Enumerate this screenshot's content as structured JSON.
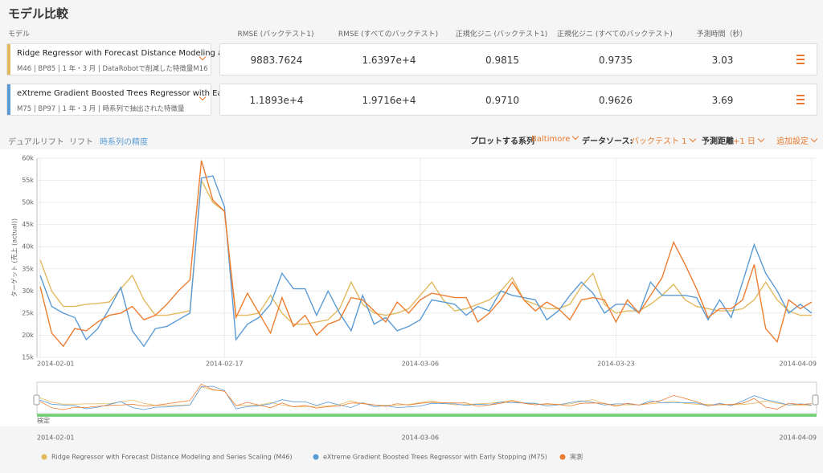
{
  "header": {
    "title": "モデル比較"
  },
  "table": {
    "columns": [
      "モデル",
      "RMSE (バックテスト1)",
      "RMSE (すべてのバックテスト)",
      "正規化ジニ (バックテスト1)",
      "正規化ジニ (すべてのバックテスト)",
      "予測時間（秒）"
    ],
    "rows": [
      {
        "name": "Ridge Regressor with Forecast Distance Modeling a...",
        "detail": "M46 | BP85 | 1 年・3 月 | DataRobotで削減した特徴量M16",
        "color": "#e3b95f",
        "cells": [
          "9883.7624",
          "1.6397e+4",
          "0.9815",
          "0.9735",
          "3.03"
        ]
      },
      {
        "name": "eXtreme Gradient Boosted Trees Regressor with Ear...",
        "detail": "M75 | BP97 | 1 年・3 月 | 時系列で抽出された特徴量",
        "color": "#5b9bd5",
        "cells": [
          "1.1893e+4",
          "1.9716e+4",
          "0.9710",
          "0.9626",
          "3.69"
        ]
      }
    ]
  },
  "tabs": [
    "デュアルリフト",
    "リフト",
    "時系列の精度"
  ],
  "controls": {
    "series_label": "プロットする系列",
    "series_value": "Baltimore",
    "source_label": "データソース:",
    "source_value": "バックテスト 1",
    "distance_label": "予測距離",
    "distance_value": "+1 日",
    "settings": "追加設定"
  },
  "navigator": {
    "label": "検定",
    "xticks": [
      "2014-02-01",
      "2014-03-06",
      "2014-04-09"
    ]
  },
  "chart_data": {
    "type": "line",
    "y_label": "ターゲット (売上 (actual))",
    "xlim": [
      "2014-02-01",
      "2014-04-09"
    ],
    "xticks": [
      "2014-02-01",
      "2014-02-17",
      "2014-03-06",
      "2014-03-23",
      "2014-04-09"
    ],
    "ylim": [
      15000,
      60000
    ],
    "yticks": [
      {
        "value": 15000,
        "label": "15k"
      },
      {
        "value": 20000,
        "label": "20k"
      },
      {
        "value": 25000,
        "label": "25k"
      },
      {
        "value": 30000,
        "label": "30k"
      },
      {
        "value": 35000,
        "label": "35k"
      },
      {
        "value": 40000,
        "label": "40k"
      },
      {
        "value": 45000,
        "label": "45k"
      },
      {
        "value": 50000,
        "label": "50k"
      },
      {
        "value": 55000,
        "label": "55k"
      },
      {
        "value": 60000,
        "label": "60k"
      }
    ],
    "grid": true,
    "x_start": "2014-02-01",
    "x_step_days": 1,
    "series": [
      {
        "name": "Ridge Regressor with Forecast Distance Modeling and Series Scaling (M46)",
        "color": "#e3b95f",
        "values": [
          37000,
          30000,
          26500,
          26500,
          27000,
          27200,
          27500,
          30500,
          33500,
          28000,
          24500,
          24500,
          25000,
          25500,
          55000,
          50000,
          48000,
          24500,
          24500,
          25000,
          29000,
          25000,
          22500,
          22500,
          23000,
          23500,
          26000,
          32000,
          27000,
          25000,
          24500,
          25000,
          26000,
          29000,
          32000,
          28000,
          25500,
          26000,
          27000,
          28000,
          30000,
          33000,
          28000,
          27000,
          26000,
          26000,
          27000,
          31000,
          34000,
          27000,
          25000,
          25500,
          25500,
          27000,
          29000,
          31500,
          28000,
          26500,
          26000,
          25500,
          25500,
          26000,
          28000,
          32000,
          28000,
          25500,
          24500,
          24500
        ]
      },
      {
        "name": "eXtreme Gradient Boosted Trees Regressor with Early Stopping (M75)",
        "color": "#5b9bd5",
        "values": [
          33500,
          26500,
          25000,
          24000,
          19000,
          21500,
          26000,
          30800,
          21000,
          17500,
          21500,
          22000,
          23500,
          25000,
          55500,
          56000,
          49000,
          19000,
          22500,
          24000,
          27000,
          34000,
          30500,
          30500,
          24500,
          30000,
          25000,
          21000,
          29000,
          22500,
          24000,
          21000,
          22000,
          23500,
          28000,
          27500,
          27000,
          24500,
          26500,
          25500,
          30000,
          29000,
          28500,
          28000,
          23500,
          25500,
          29000,
          32000,
          29500,
          25000,
          27000,
          27000,
          25000,
          32000,
          29000,
          29000,
          29000,
          28500,
          23500,
          28000,
          24000,
          32000,
          40500,
          34000,
          30000,
          25000,
          27000,
          25000
        ]
      },
      {
        "name": "実測",
        "color": "#ed7d31",
        "values": [
          31000,
          20500,
          17500,
          21500,
          21000,
          23000,
          24500,
          25000,
          26500,
          23500,
          24500,
          27000,
          30000,
          32500,
          59500,
          50500,
          48000,
          24000,
          29500,
          25000,
          20500,
          28500,
          22000,
          24500,
          20000,
          22500,
          23500,
          28500,
          28000,
          25500,
          23000,
          27500,
          25000,
          28000,
          29500,
          29000,
          28500,
          28500,
          23000,
          25000,
          28000,
          32000,
          28000,
          25500,
          27500,
          26000,
          23500,
          28000,
          28500,
          28000,
          23000,
          28000,
          25000,
          29000,
          33000,
          41000,
          36000,
          30500,
          24000,
          26000,
          26000,
          28000,
          36000,
          21500,
          18500,
          28000,
          26000,
          27500
        ]
      }
    ]
  }
}
